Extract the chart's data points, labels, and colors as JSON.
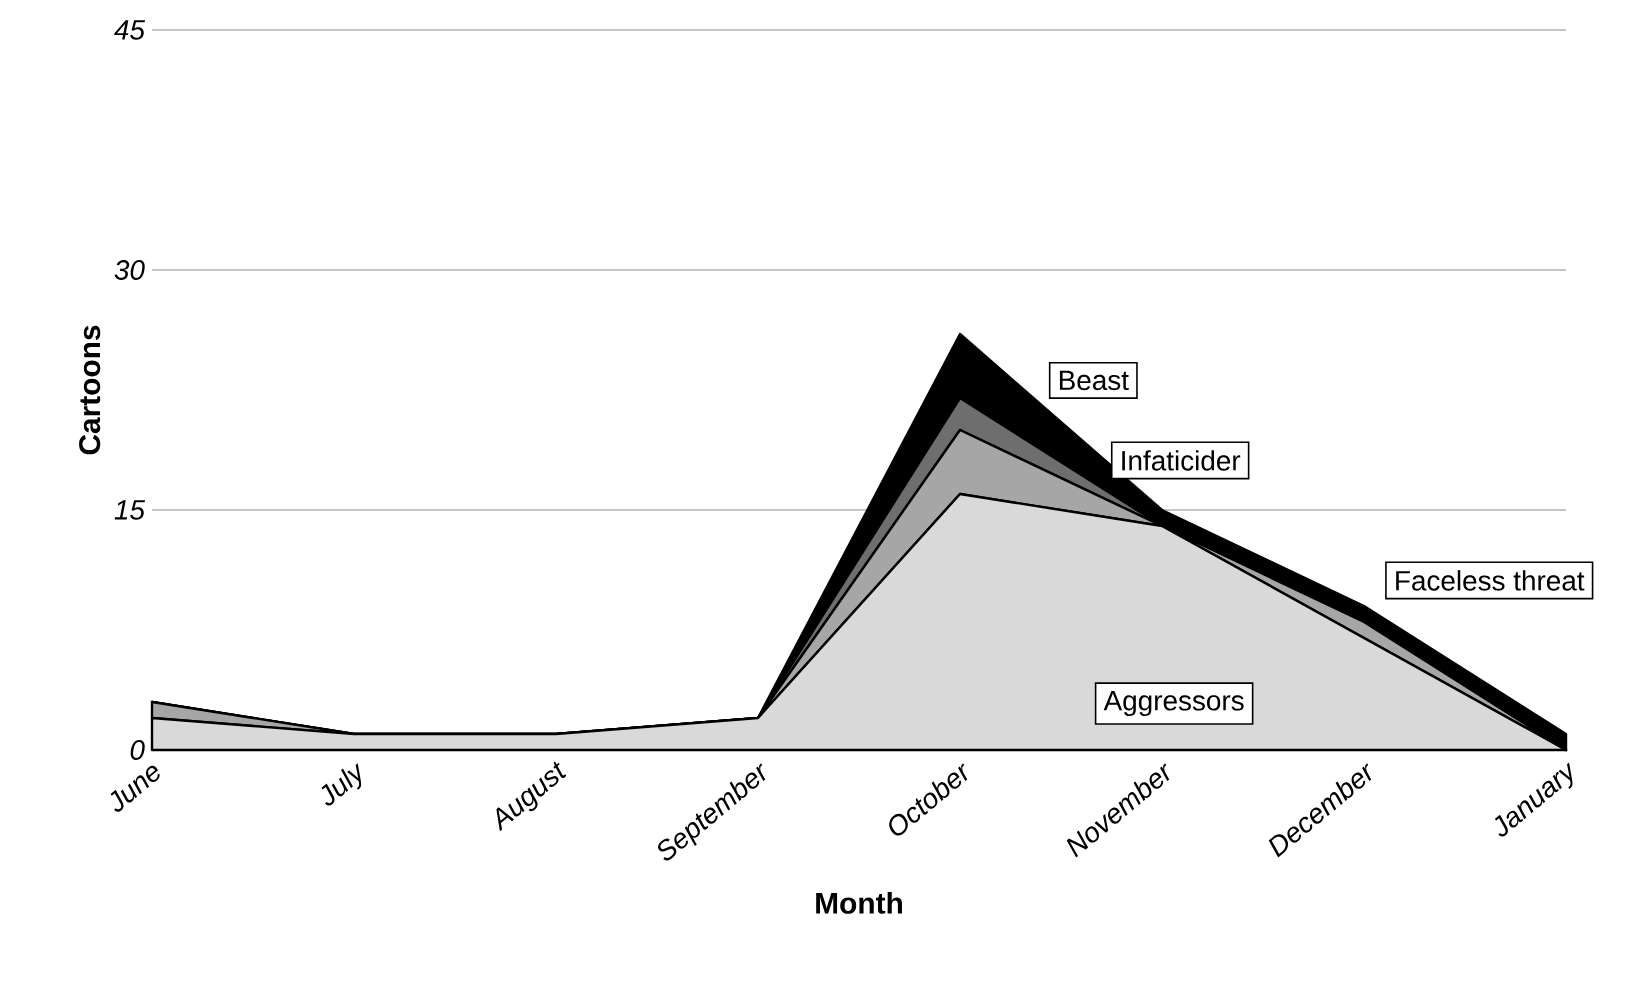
{
  "chart_data": {
    "type": "area",
    "stacked": true,
    "xlabel": "Month",
    "ylabel": "Cartoons",
    "categories": [
      "June",
      "July",
      "August",
      "September",
      "October",
      "November",
      "December",
      "January"
    ],
    "series": [
      {
        "name": "Aggressors",
        "color": "#d9d9d9",
        "values": [
          2,
          1,
          1,
          2,
          16,
          14,
          7,
          0
        ]
      },
      {
        "name": "Faceless threat",
        "color": "#a6a6a6",
        "values": [
          1,
          0,
          0,
          0,
          4,
          0,
          1,
          0
        ]
      },
      {
        "name": "Infaticider",
        "color": "#6e6e6e",
        "values": [
          0,
          0,
          0,
          0,
          2,
          0,
          0,
          0
        ]
      },
      {
        "name": "Beast",
        "color": "#000000",
        "values": [
          0,
          0,
          0,
          0,
          4,
          1,
          1,
          1
        ]
      }
    ],
    "ylim": [
      0,
      45
    ],
    "yticks": [
      0,
      15,
      30,
      45
    ],
    "grid": "y"
  }
}
